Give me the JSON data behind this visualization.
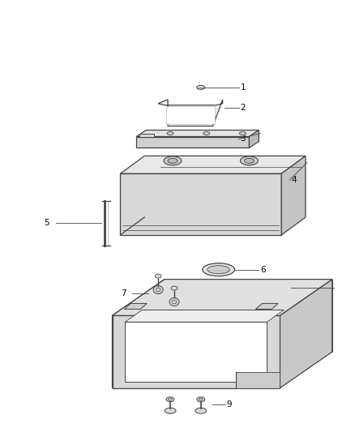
{
  "background_color": "#ffffff",
  "line_color": "#444444",
  "text_color": "#000000",
  "fig_width": 4.38,
  "fig_height": 5.33,
  "dpi": 100,
  "label_fontsize": 7.5
}
